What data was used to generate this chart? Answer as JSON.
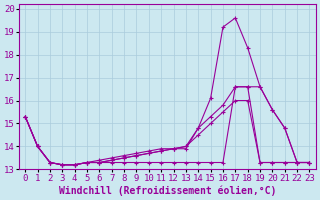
{
  "xlabel": "Windchill (Refroidissement éolien,°C)",
  "ylabel": "",
  "bg_color": "#cce8f0",
  "line_color": "#990099",
  "grid_color": "#aaccdd",
  "x_ticks": [
    0,
    1,
    2,
    3,
    4,
    5,
    6,
    7,
    8,
    9,
    10,
    11,
    12,
    13,
    14,
    15,
    16,
    17,
    18,
    19,
    20,
    21,
    22,
    23
  ],
  "ylim": [
    13,
    20.2
  ],
  "xlim": [
    -0.5,
    23.5
  ],
  "series": [
    [
      15.3,
      14.0,
      13.3,
      13.2,
      13.2,
      13.3,
      13.4,
      13.5,
      13.6,
      13.7,
      13.8,
      13.9,
      13.9,
      13.9,
      14.8,
      16.1,
      19.2,
      19.6,
      18.3,
      16.6,
      15.6,
      14.8,
      13.3,
      13.3
    ],
    [
      15.3,
      14.0,
      13.3,
      13.2,
      13.2,
      13.3,
      13.3,
      13.3,
      13.3,
      13.3,
      13.3,
      13.3,
      13.3,
      13.3,
      13.3,
      13.3,
      13.3,
      16.6,
      16.6,
      13.3,
      13.3,
      13.3,
      13.3,
      13.3
    ],
    [
      15.3,
      14.0,
      13.3,
      13.2,
      13.2,
      13.3,
      13.3,
      13.4,
      13.5,
      13.6,
      13.7,
      13.8,
      13.9,
      14.0,
      14.8,
      15.3,
      15.8,
      16.6,
      16.6,
      16.6,
      15.6,
      14.8,
      13.3,
      13.3
    ],
    [
      15.3,
      14.0,
      13.3,
      13.2,
      13.2,
      13.3,
      13.3,
      13.4,
      13.5,
      13.6,
      13.7,
      13.8,
      13.9,
      14.0,
      14.5,
      15.0,
      15.5,
      16.0,
      16.0,
      13.3,
      13.3,
      13.3,
      13.3,
      13.3
    ]
  ],
  "title_fontsize": 7,
  "xlabel_fontsize": 7,
  "tick_fontsize": 6.5
}
